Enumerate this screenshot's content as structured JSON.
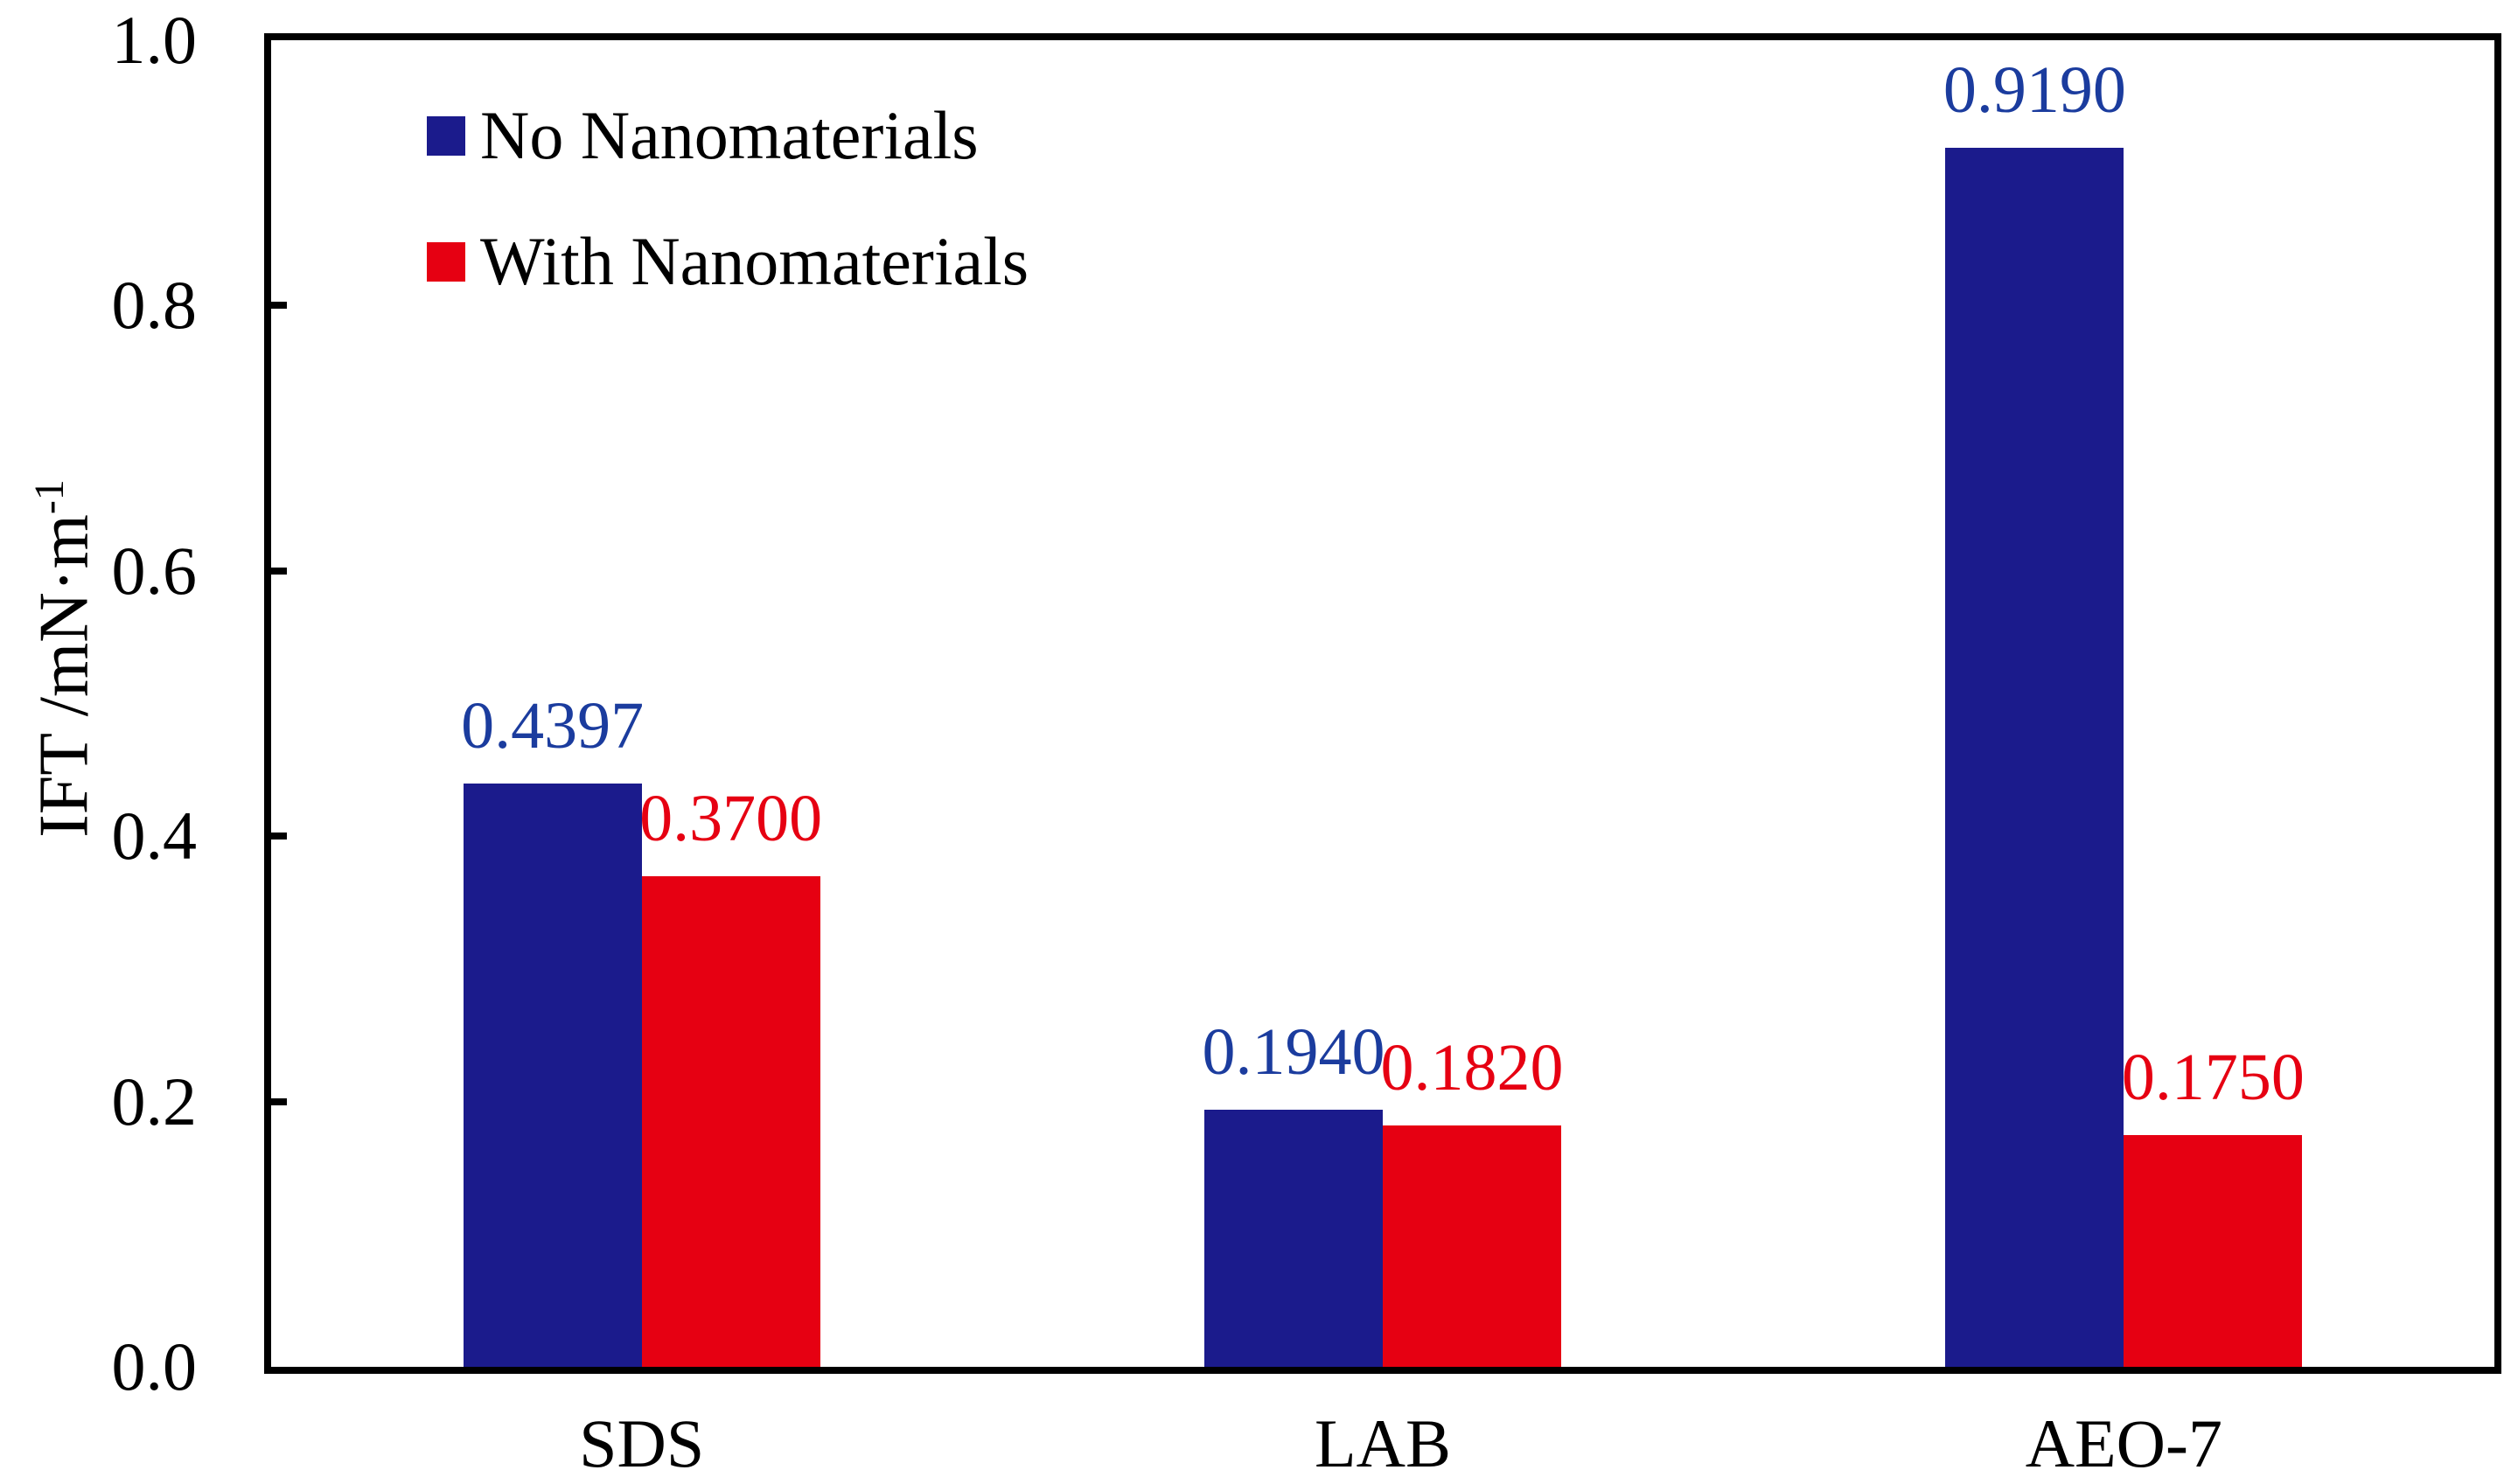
{
  "chart_data": {
    "type": "bar",
    "title": "",
    "xlabel": "",
    "ylabel": "IFT /mN·m⁻¹",
    "ylabel_base": "IFT /mN·m",
    "ylabel_sup": "-1",
    "categories": [
      "SDS",
      "LAB",
      "AEO-7"
    ],
    "series": [
      {
        "name": "No Nanomaterials",
        "color": "#1b1b8c",
        "label_color": "#1b3c9e",
        "values": [
          0.4397,
          0.194,
          0.919
        ],
        "value_labels": [
          "0.4397",
          "0.1940",
          "0.9190"
        ]
      },
      {
        "name": "With Nanomaterials",
        "color": "#e60012",
        "label_color": "#e60012",
        "values": [
          0.37,
          0.182,
          0.175
        ],
        "value_labels": [
          "0.3700",
          "0.1820",
          "0.1750"
        ]
      }
    ],
    "ylim": [
      0.0,
      1.0
    ],
    "yticks": [
      {
        "value": 0.0,
        "label": "0.0"
      },
      {
        "value": 0.2,
        "label": "0.2"
      },
      {
        "value": 0.4,
        "label": "0.4"
      },
      {
        "value": 0.6,
        "label": "0.6"
      },
      {
        "value": 0.8,
        "label": "0.8"
      },
      {
        "value": 1.0,
        "label": "1.0"
      }
    ],
    "grid": false,
    "legend_position": "inside-top-left",
    "frame_color": "#000000",
    "background_color": "#ffffff"
  }
}
